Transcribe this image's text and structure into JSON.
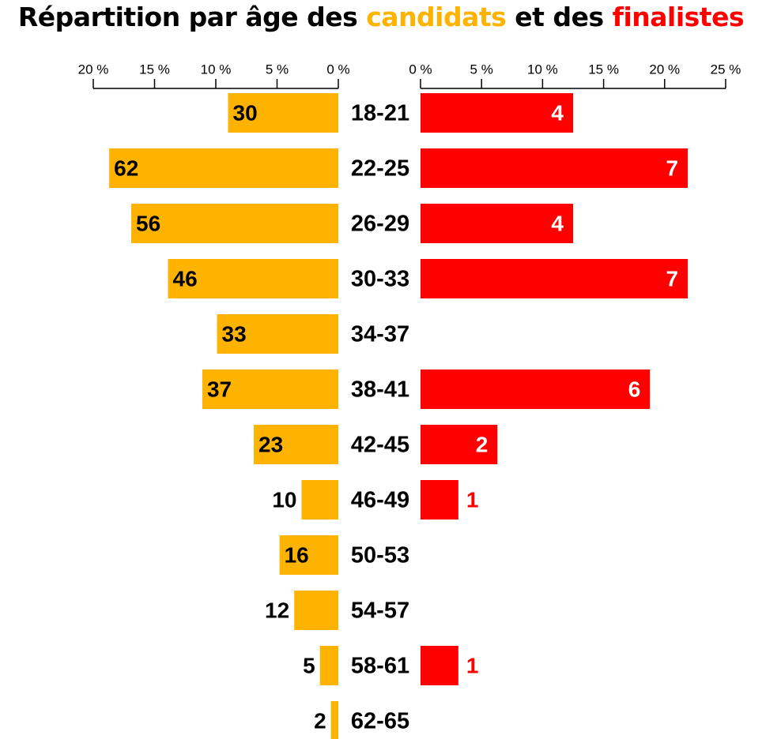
{
  "chart_data": {
    "type": "butterfly",
    "title": [
      "Répartition par âge des ",
      "candidats",
      " et des ",
      "finalistes"
    ],
    "categories": [
      "18-21",
      "22-25",
      "26-29",
      "30-33",
      "34-37",
      "38-41",
      "42-45",
      "46-49",
      "50-53",
      "54-57",
      "58-61",
      "62-65"
    ],
    "series": [
      {
        "name": "candidats",
        "color": "#fdb300",
        "axis": "x",
        "values": [
          9.0,
          18.7,
          16.9,
          13.9,
          9.9,
          11.1,
          6.9,
          3.0,
          4.8,
          3.6,
          1.5,
          0.6
        ],
        "counts": [
          30,
          62,
          56,
          46,
          33,
          37,
          23,
          10,
          16,
          12,
          5,
          2
        ]
      },
      {
        "name": "finalistes",
        "color": "#ff0000",
        "axis": "x2",
        "values": [
          12.5,
          21.9,
          12.5,
          21.9,
          null,
          18.8,
          6.3,
          3.1,
          null,
          null,
          3.1,
          null
        ],
        "counts": [
          4,
          7,
          4,
          7,
          null,
          6,
          2,
          1,
          null,
          null,
          1,
          null
        ]
      }
    ],
    "xlim": [
      0,
      20
    ],
    "xticks": [
      {
        "value": 20,
        "label": "20 %"
      },
      {
        "value": 15,
        "label": "15 %"
      },
      {
        "value": 10,
        "label": "10 %"
      },
      {
        "value": 5,
        "label": "5 %"
      },
      {
        "value": 0,
        "label": "0 %"
      }
    ],
    "x2lim": [
      0,
      25
    ],
    "x2ticks": [
      {
        "value": 0,
        "label": "0 %"
      },
      {
        "value": 5,
        "label": "5 %"
      },
      {
        "value": 10,
        "label": "10 %"
      },
      {
        "value": 15,
        "label": "15 %"
      },
      {
        "value": 20,
        "label": "20 %"
      },
      {
        "value": 25,
        "label": "25 %"
      }
    ]
  }
}
